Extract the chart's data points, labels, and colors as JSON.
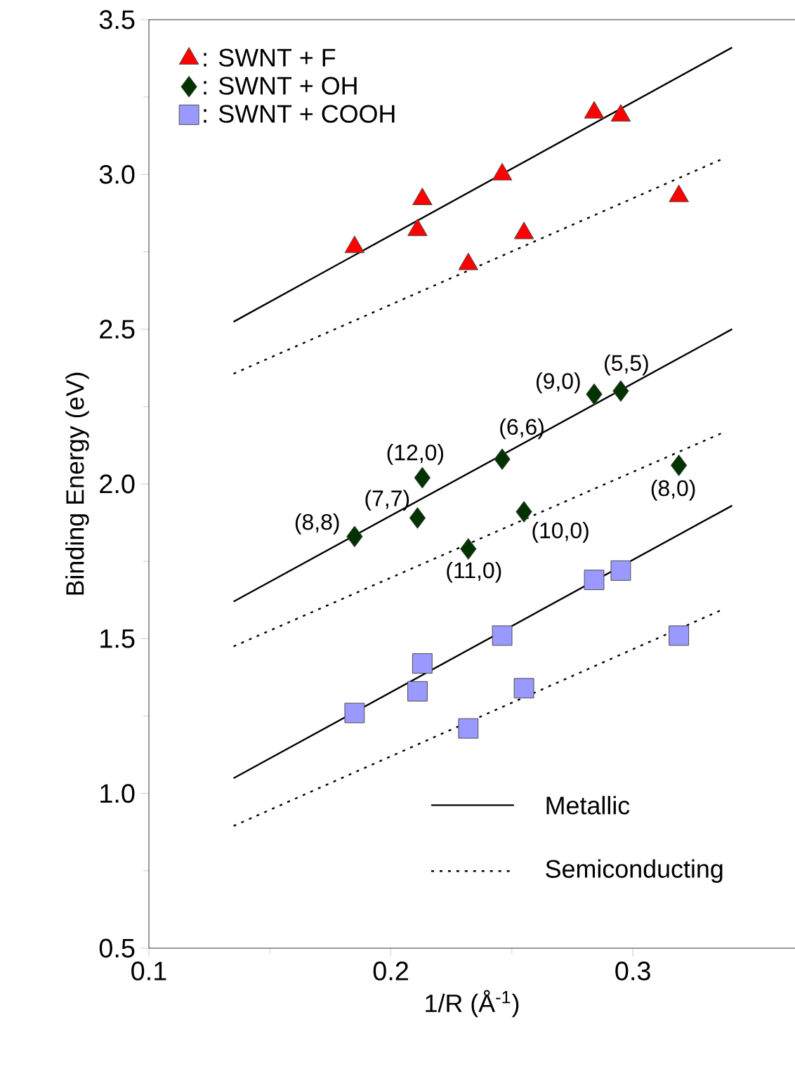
{
  "chart_data": {
    "type": "scatter",
    "xlabel": "1/R (Å$^{-1}$)",
    "ylabel": "Binding Energy (eV)",
    "xlim": [
      0.1,
      0.367
    ],
    "xticks": [
      0.1,
      0.2,
      0.3
    ],
    "ylim": [
      0.5,
      3.5
    ],
    "yticks": [
      0.5,
      {
        "value": 1,
        "label": "1.0"
      },
      1.5,
      {
        "value": 2,
        "label": "2.0"
      },
      2.5,
      {
        "value": 3,
        "label": "3.0"
      },
      3.5
    ],
    "legend": "top left",
    "series": [
      {
        "name": ": SWNT + F",
        "marker": "triangle",
        "color": "#ff0000",
        "x": [
          0.185,
          0.211,
          0.213,
          0.232,
          0.246,
          0.255,
          0.284,
          0.295,
          0.319
        ],
        "values": [
          2.765,
          2.82,
          2.92,
          2.71,
          3.0,
          2.81,
          3.2,
          3.19,
          2.93
        ]
      },
      {
        "name": ": SWNT + OH",
        "marker": "diamond",
        "color": "#003300",
        "x": [
          0.185,
          0.211,
          0.213,
          0.232,
          0.246,
          0.255,
          0.284,
          0.295,
          0.319
        ],
        "values": [
          1.83,
          1.89,
          2.02,
          1.79,
          2.08,
          1.91,
          2.29,
          2.3,
          2.06
        ]
      },
      {
        "name": ": SWNT + COOH",
        "marker": "square",
        "color": "#9999ff",
        "x": [
          0.185,
          0.211,
          0.213,
          0.232,
          0.246,
          0.255,
          0.284,
          0.295,
          0.319
        ],
        "values": [
          1.26,
          1.33,
          1.42,
          1.21,
          1.51,
          1.34,
          1.69,
          1.72,
          1.51
        ]
      },
      {
        "name": "Metallic",
        "type": "line",
        "line_style": "solid",
        "color": "#000000",
        "x": [
          0.135,
          0.341
        ],
        "values": [
          2.524,
          3.41
        ]
      },
      {
        "name": "Semiconducting",
        "type": "line",
        "line_style": "dotted",
        "color": "#000000",
        "x": [
          0.135,
          0.337
        ],
        "values": [
          2.356,
          3.05
        ]
      },
      {
        "type": "line",
        "line_style": "solid",
        "color": "#000000",
        "x": [
          0.135,
          0.341
        ],
        "values": [
          1.62,
          2.5
        ]
      },
      {
        "type": "line",
        "line_style": "dotted",
        "color": "#000000",
        "x": [
          0.135,
          0.337
        ],
        "values": [
          1.475,
          2.165
        ]
      },
      {
        "type": "line",
        "line_style": "solid",
        "color": "#000000",
        "x": [
          0.135,
          0.341
        ],
        "values": [
          1.049,
          1.93
        ]
      },
      {
        "type": "line",
        "line_style": "dotted",
        "color": "#000000",
        "x": [
          0.135,
          0.337
        ],
        "values": [
          0.895,
          1.594
        ]
      }
    ],
    "annotations": [
      {
        "text": "(8,8)",
        "x": 0.185,
        "y": 1.83
      },
      {
        "text": "(7,7)",
        "x": 0.211,
        "y": 1.89
      },
      {
        "text": "(12,0)",
        "x": 0.213,
        "y": 2.02
      },
      {
        "text": "(11,0)",
        "x": 0.232,
        "y": 1.79
      },
      {
        "text": "(6,6)",
        "x": 0.246,
        "y": 2.08
      },
      {
        "text": "(10,0)",
        "x": 0.255,
        "y": 1.91
      },
      {
        "text": "(9,0)",
        "x": 0.284,
        "y": 2.29
      },
      {
        "text": "(5,5)",
        "x": 0.295,
        "y": 2.3
      },
      {
        "text": "(8,0)",
        "x": 0.319,
        "y": 2.06
      }
    ]
  }
}
